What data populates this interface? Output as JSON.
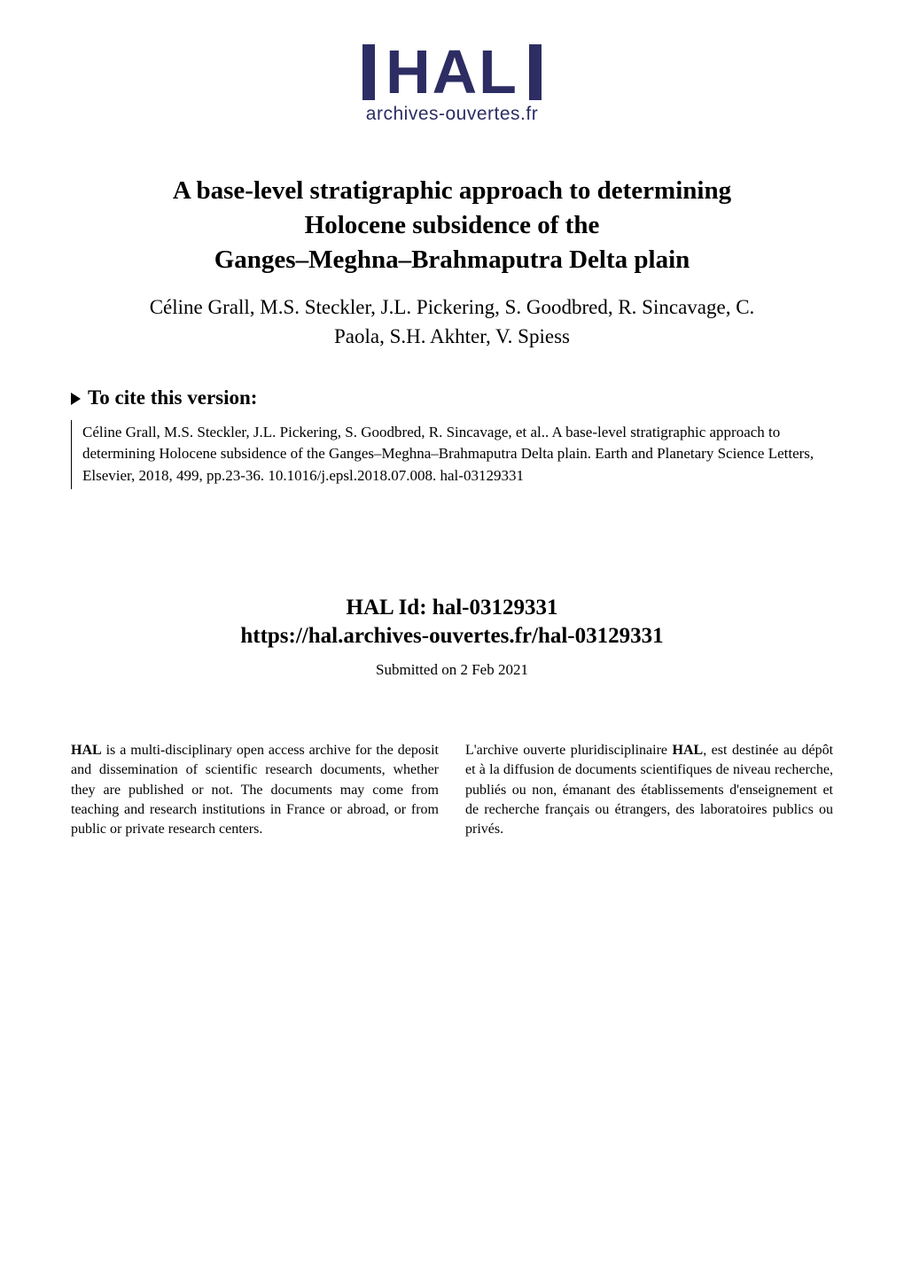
{
  "logo": {
    "main": "HAL",
    "sub": "archives-ouvertes.fr"
  },
  "title_line1": "A base-level stratigraphic approach to determining",
  "title_line2": "Holocene subsidence of the",
  "title_line3": "Ganges–Meghna–Brahmaputra Delta plain",
  "authors_line1": "Céline Grall, M.S. Steckler, J.L. Pickering, S. Goodbred, R. Sincavage, C.",
  "authors_line2": "Paola, S.H. Akhter, V. Spiess",
  "cite": {
    "heading": "To cite this version:",
    "body": "Céline Grall, M.S. Steckler, J.L. Pickering, S. Goodbred, R. Sincavage, et al.. A base-level stratigraphic approach to determining Holocene subsidence of the Ganges–Meghna–Brahmaputra Delta plain. Earth and Planetary Science Letters, Elsevier, 2018, 499, pp.23-36. ​10.1016/j.epsl.2018.07.008​. ​hal-03129331​"
  },
  "halid": {
    "id_label": "HAL Id: hal-03129331",
    "url": "https://hal.archives-ouvertes.fr/hal-03129331",
    "submitted": "Submitted on 2 Feb 2021"
  },
  "col_left_pre": " is a multi-disciplinary open access archive for the deposit and dissemination of scientific research documents, whether they are published or not. The documents may come from teaching and research institutions in France or abroad, or from public or private research centers.",
  "col_left_bold": "HAL",
  "col_right_pre": "L'archive ouverte pluridisciplinaire ",
  "col_right_bold": "HAL",
  "col_right_post": ", est destinée au dépôt et à la diffusion de documents scientifiques de niveau recherche, publiés ou non, émanant des établissements d'enseignement et de recherche français ou étrangers, des laboratoires publics ou privés.",
  "colors": {
    "logo": "#2d2d64",
    "text": "#000000",
    "background": "#ffffff"
  },
  "fontsizes": {
    "logo_main": 70,
    "logo_sub": 21,
    "title": 29,
    "authors": 23,
    "cite_heading": 23,
    "cite_body": 17,
    "halid": 25,
    "halid_sub": 17,
    "columns": 16
  }
}
